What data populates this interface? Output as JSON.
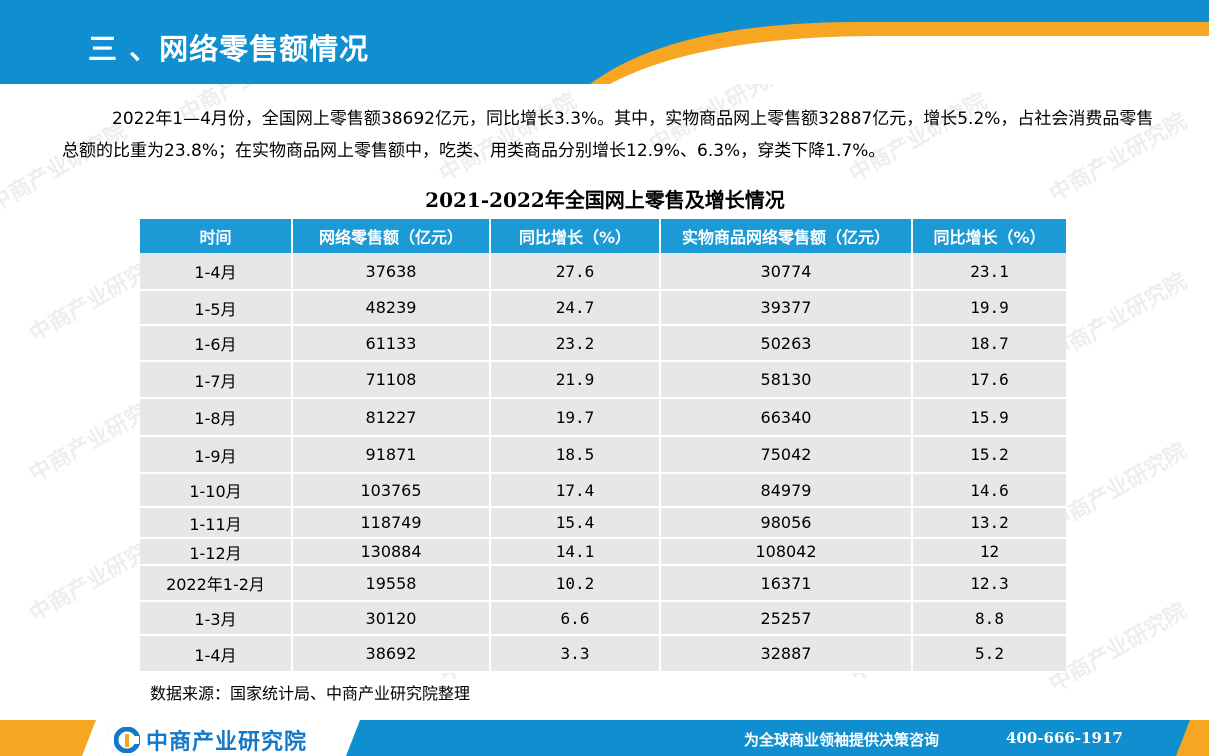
{
  "header": {
    "title": "三 、网络零售额情况"
  },
  "intro": {
    "paragraph": "2022年1—4月份，全国网上零售额38692亿元，同比增长3.3%。其中，实物商品网上零售额32887亿元，增长5.2%，占社会消费品零售总额的比重为23.8%；在实物商品网上零售额中，吃类、用类商品分别增长12.9%、6.3%，穿类下降1.7%。"
  },
  "table": {
    "title": "2021-2022年全国网上零售及增长情况",
    "headers": [
      "时间",
      "网络零售额（亿元）",
      "同比增长（%）",
      "实物商品网络零售额（亿元）",
      "同比增长（%）"
    ],
    "rows": [
      [
        "1-4月",
        "37638",
        "27.6",
        "30774",
        "23.1"
      ],
      [
        "1-5月",
        "48239",
        "24.7",
        "39377",
        "19.9"
      ],
      [
        "1-6月",
        "61133",
        "23.2",
        "50263",
        "18.7"
      ],
      [
        "1-7月",
        "71108",
        "21.9",
        "58130",
        "17.6"
      ],
      [
        "1-8月",
        "81227",
        "19.7",
        "66340",
        "15.9"
      ],
      [
        "1-9月",
        "91871",
        "18.5",
        "75042",
        "15.2"
      ],
      [
        "1-10月",
        "103765",
        "17.4",
        "84979",
        "14.6"
      ],
      [
        "1-11月",
        "118749",
        "15.4",
        "98056",
        "13.2"
      ],
      [
        "1-12月",
        "130884",
        "14.1",
        "108042",
        "12"
      ],
      [
        "2022年1-2月",
        "19558",
        "10.2",
        "16371",
        "12.3"
      ],
      [
        "1-3月",
        "30120",
        "6.6",
        "25257",
        "8.8"
      ],
      [
        "1-4月",
        "38692",
        "3.3",
        "32887",
        "5.2"
      ]
    ],
    "row_heights": [
      37,
      35,
      36,
      37,
      38,
      37,
      34,
      31,
      27,
      36,
      34,
      37
    ]
  },
  "source": "数据来源：国家统计局、中商产业研究院整理",
  "footer": {
    "logo_text": "中商产业研究院",
    "slogan": "为全球商业领袖提供决策咨询",
    "phone": "400-666-1917"
  },
  "watermark": {
    "text": "中商产业研究院"
  },
  "colors": {
    "header_blue": "#0f8fd0",
    "accent_orange": "#f6a623",
    "table_header": "#1b9ad6",
    "table_cell": "#e7e7e7"
  }
}
